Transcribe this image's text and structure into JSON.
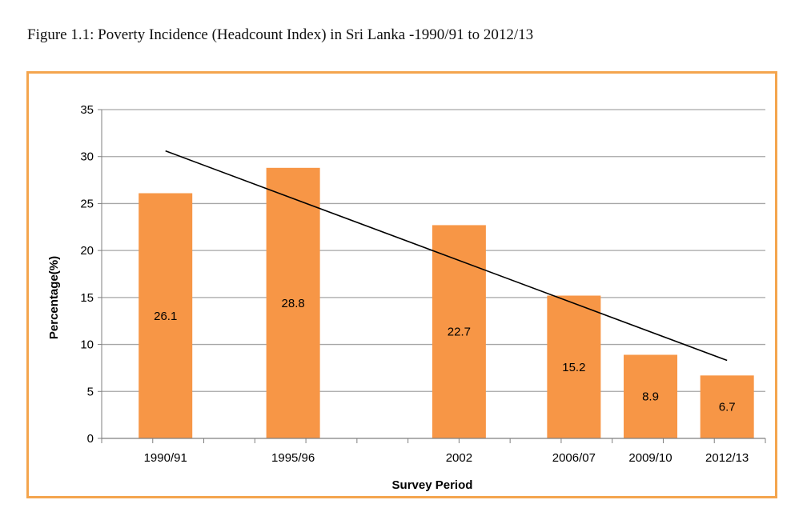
{
  "caption": "Figure 1.1: Poverty Incidence (Headcount Index) in Sri Lanka -1990/91 to 2012/13",
  "colors": {
    "bar": "#f79646",
    "frame": "#f4a54e",
    "grid": "#a6a6a6",
    "trendline": "#000000",
    "text": "#000000"
  },
  "chart_data": {
    "type": "bar",
    "title": "",
    "xlabel": "Survey Period",
    "ylabel": "Percentage(%)",
    "categories": [
      "1990/91",
      "1995/96",
      "2002",
      "2006/07",
      "2009/10",
      "2012/13"
    ],
    "x_years": [
      1990.5,
      1995.5,
      2002,
      2006.5,
      2009.5,
      2012.5
    ],
    "x_range": [
      1988,
      2014
    ],
    "values": [
      26.1,
      28.8,
      22.7,
      15.2,
      8.9,
      6.7
    ],
    "data_labels": [
      "26.1",
      "28.8",
      "22.7",
      "15.2",
      "8.9",
      "6.7"
    ],
    "ylim": [
      0,
      35
    ],
    "yticks": [
      0,
      5,
      10,
      15,
      20,
      25,
      30,
      35
    ],
    "grid": true,
    "legend": "none",
    "trendline": {
      "type": "linear",
      "start": {
        "x": 1990.5,
        "y": 30.6
      },
      "end": {
        "x": 2012.5,
        "y": 8.3
      }
    }
  }
}
